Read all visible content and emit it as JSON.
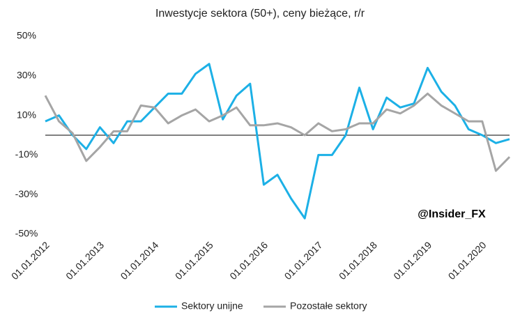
{
  "chart_data": {
    "type": "line",
    "title": "Inwestycje sektora (50+), ceny bieżące, r/r",
    "annotation": "@Insider_FX",
    "categories": [
      "01.01.2012",
      null,
      null,
      null,
      "01.01.2013",
      null,
      null,
      null,
      "01.01.2014",
      null,
      null,
      null,
      "01.01.2015",
      null,
      null,
      null,
      "01.01.2016",
      null,
      null,
      null,
      "01.01.2017",
      null,
      null,
      null,
      "01.01.2018",
      null,
      null,
      null,
      "01.01.2019",
      null,
      null,
      null,
      "01.01.2020",
      null,
      null
    ],
    "series": [
      {
        "name": "Sektory unijne",
        "color": "#1cb0e6",
        "values": [
          7,
          10,
          0,
          -7,
          4,
          -4,
          7,
          7,
          14,
          21,
          21,
          31,
          36,
          8,
          20,
          26,
          -25,
          -20,
          -32,
          -42,
          -10,
          -10,
          0,
          24,
          3,
          19,
          14,
          16,
          34,
          22,
          15,
          3,
          0,
          -4,
          -2
        ]
      },
      {
        "name": "Pozostałe sektory",
        "color": "#a5a5a5",
        "values": [
          20,
          7,
          1,
          -13,
          -6,
          2,
          2,
          15,
          14,
          6,
          10,
          13,
          7,
          10,
          14,
          5,
          5,
          6,
          4,
          0,
          6,
          2,
          3,
          6,
          6,
          13,
          11,
          15,
          21,
          15,
          11,
          7,
          7,
          -18,
          -11
        ]
      }
    ],
    "ylim": [
      -50,
      50
    ],
    "yticks": [
      {
        "value": 50,
        "label": "50%"
      },
      {
        "value": 30,
        "label": "30%"
      },
      {
        "value": 10,
        "label": "10%"
      },
      {
        "value": -10,
        "label": "-10%"
      },
      {
        "value": -30,
        "label": "-30%"
      },
      {
        "value": -50,
        "label": "-50%"
      }
    ],
    "legend": "bottom"
  }
}
